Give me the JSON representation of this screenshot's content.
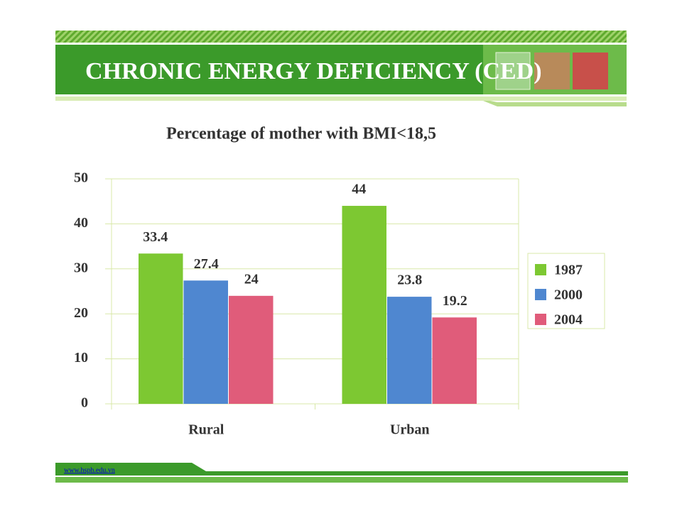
{
  "header": {
    "title": "CHRONIC ENERGY DEFICIENCY (CED)"
  },
  "footer": {
    "url": "www.hsph.edu.vn"
  },
  "chart_data": {
    "type": "bar",
    "title": "Percentage of mother with BMI<18,5",
    "categories": [
      "Rural",
      "Urban"
    ],
    "series": [
      {
        "name": "1987",
        "color": "#7dc832",
        "values": [
          33.4,
          44
        ]
      },
      {
        "name": "2000",
        "color": "#4f87d0",
        "values": [
          27.4,
          23.8
        ]
      },
      {
        "name": "2004",
        "color": "#e05c7a",
        "values": [
          24,
          19.2
        ]
      }
    ],
    "ylim": [
      0,
      50
    ],
    "yticks": [
      0,
      10,
      20,
      30,
      40,
      50
    ],
    "grid": true,
    "legend": "right"
  }
}
